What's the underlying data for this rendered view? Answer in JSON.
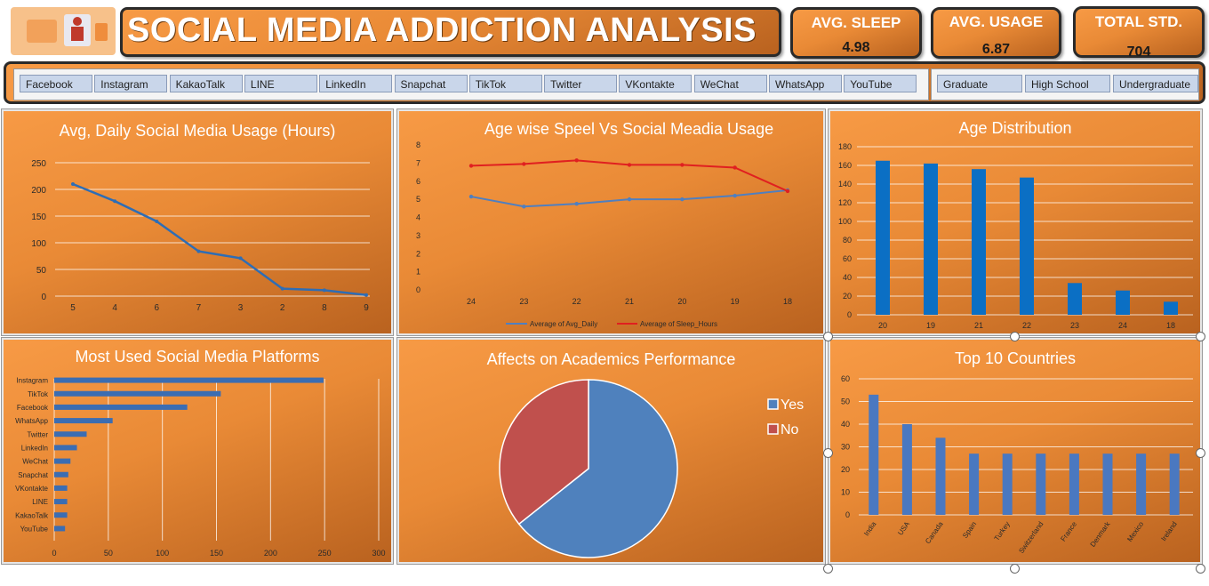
{
  "header": {
    "title": "SOCIAL MEDIA ADDICTION ANALYSIS"
  },
  "kpis": {
    "sleep_label": "AVG. SLEEP",
    "sleep_value": "4.98",
    "usage_label": "AVG. USAGE",
    "usage_value": "6.87",
    "total_label": "TOTAL STD.",
    "total_value": "704"
  },
  "slicers": {
    "platforms": [
      "Facebook",
      "Instagram",
      "KakaoTalk",
      "LINE",
      "LinkedIn",
      "Snapchat",
      "TikTok",
      "Twitter",
      "VKontakte",
      "WeChat",
      "WhatsApp",
      "YouTube"
    ],
    "levels": [
      "Graduate",
      "High School",
      "Undergraduate"
    ]
  },
  "colors": {
    "accent_orange": "#f08a3a",
    "series_blue": "#2e6db5",
    "series_red": "#e02020",
    "pie_yes": "#4f81bd",
    "pie_no": "#c0504d"
  },
  "chart_data": [
    {
      "type": "line",
      "title": "Avg, Daily Social Media Usage (Hours)",
      "categories": [
        "5",
        "4",
        "6",
        "7",
        "3",
        "2",
        "8",
        "9"
      ],
      "values": [
        210,
        178,
        140,
        84,
        71,
        14,
        11,
        2
      ],
      "ylim": [
        0,
        250
      ],
      "yticks": [
        "0",
        "50",
        "100",
        "150",
        "200",
        "250"
      ],
      "grid": true
    },
    {
      "type": "line",
      "title": "Age wise Speel Vs Social Meadia Usage",
      "categories": [
        "24",
        "23",
        "22",
        "21",
        "20",
        "19",
        "18"
      ],
      "series": [
        {
          "name": "Average of Avg_Daily",
          "values": [
            5.15,
            4.6,
            4.75,
            5.0,
            5.0,
            5.2,
            5.5
          ]
        },
        {
          "name": "Average of Sleep_Hours",
          "values": [
            6.85,
            6.95,
            7.15,
            6.9,
            6.9,
            6.75,
            5.45
          ]
        }
      ],
      "ylim": [
        0,
        8
      ],
      "yticks": [
        "0",
        "1",
        "2",
        "3",
        "4",
        "5",
        "6",
        "7",
        "8"
      ],
      "legend": "bottom",
      "grid": false
    },
    {
      "type": "bar",
      "title": "Age Distribution",
      "categories": [
        "20",
        "19",
        "21",
        "22",
        "23",
        "24",
        "18"
      ],
      "values": [
        165,
        162,
        156,
        147,
        34,
        26,
        14
      ],
      "ylim": [
        0,
        180
      ],
      "yticks": [
        "0",
        "20",
        "40",
        "60",
        "80",
        "100",
        "120",
        "140",
        "160",
        "180"
      ],
      "grid": true
    },
    {
      "type": "bar",
      "orientation": "horizontal",
      "title": "Most Used Social Media Platforms",
      "categories": [
        "Instagram",
        "TikTok",
        "Facebook",
        "WhatsApp",
        "Twitter",
        "LinkedIn",
        "WeChat",
        "Snapchat",
        "VKontakte",
        "LINE",
        "KakaoTalk",
        "YouTube"
      ],
      "values": [
        249,
        154,
        123,
        54,
        30,
        21,
        15,
        13,
        12,
        12,
        12,
        10
      ],
      "xlim": [
        0,
        300
      ],
      "xticks": [
        "0",
        "50",
        "100",
        "150",
        "200",
        "250",
        "300"
      ],
      "grid": true
    },
    {
      "type": "pie",
      "title": "Affects on Academics Performance",
      "labels": [
        "Yes",
        "No"
      ],
      "values": [
        64.3,
        35.7
      ],
      "legend": "right"
    },
    {
      "type": "bar",
      "title": "Top 10 Countries",
      "categories": [
        "India",
        "USA",
        "Canada",
        "Spain",
        "Turkey",
        "Switzerland",
        "France",
        "Denmark",
        "Mexico",
        "Ireland"
      ],
      "values": [
        53,
        40,
        34,
        27,
        27,
        27,
        27,
        27,
        27,
        27
      ],
      "ylim": [
        0,
        60
      ],
      "yticks": [
        "0",
        "10",
        "20",
        "30",
        "40",
        "50",
        "60"
      ],
      "grid": true
    }
  ]
}
